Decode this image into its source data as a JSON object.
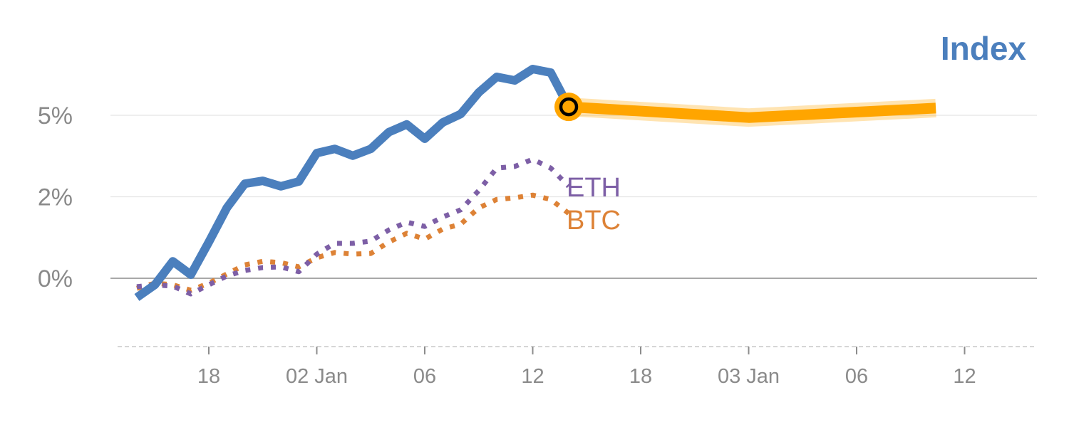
{
  "chart_data": {
    "type": "line",
    "title": "Index",
    "x_tick_labels": [
      {
        "index": 4,
        "label": "18"
      },
      {
        "index": 10,
        "label": "02 Jan"
      },
      {
        "index": 16,
        "label": "06"
      },
      {
        "index": 22,
        "label": "12"
      },
      {
        "index": 28,
        "label": "18"
      },
      {
        "index": 34,
        "label": "03 Jan"
      },
      {
        "index": 40,
        "label": "06"
      },
      {
        "index": 46,
        "label": "12"
      }
    ],
    "y_ticks": [
      {
        "value": 0,
        "label": "0%"
      },
      {
        "value": 2.5,
        "label": "2%"
      },
      {
        "value": 5,
        "label": "5%"
      }
    ],
    "ylim": [
      -2.1,
      7.4
    ],
    "xlim": [
      -1.5,
      50
    ],
    "grid": true,
    "series": [
      {
        "name": "Index",
        "color": "#4b7fbd",
        "style": "solid",
        "values": [
          -0.59,
          -0.2,
          0.52,
          0.11,
          1.11,
          2.16,
          2.9,
          2.99,
          2.82,
          2.97,
          3.84,
          3.97,
          3.76,
          3.97,
          4.48,
          4.72,
          4.28,
          4.78,
          5.04,
          5.7,
          6.18,
          6.07,
          6.42,
          6.31,
          5.26
        ]
      },
      {
        "name": "ETH",
        "color": "#7d5fa6",
        "style": "dotted",
        "values": [
          -0.26,
          -0.2,
          -0.24,
          -0.48,
          -0.2,
          0.07,
          0.24,
          0.33,
          0.35,
          0.2,
          0.74,
          1.07,
          1.07,
          1.14,
          1.48,
          1.72,
          1.59,
          1.88,
          2.1,
          2.69,
          3.38,
          3.43,
          3.65,
          3.38,
          2.82
        ]
      },
      {
        "name": "BTC",
        "color": "#dd8236",
        "style": "dotted",
        "values": [
          -0.31,
          -0.15,
          -0.2,
          -0.37,
          -0.15,
          0.13,
          0.41,
          0.52,
          0.48,
          0.35,
          0.63,
          0.79,
          0.74,
          0.76,
          1.11,
          1.38,
          1.2,
          1.51,
          1.66,
          2.16,
          2.42,
          2.47,
          2.55,
          2.42,
          1.99
        ]
      }
    ],
    "forecast": {
      "color": "#ffa500",
      "points": [
        {
          "index": 24,
          "value": 5.26
        },
        {
          "index": 34,
          "value": 4.93
        },
        {
          "index": 44.4,
          "value": 5.22
        }
      ]
    }
  }
}
